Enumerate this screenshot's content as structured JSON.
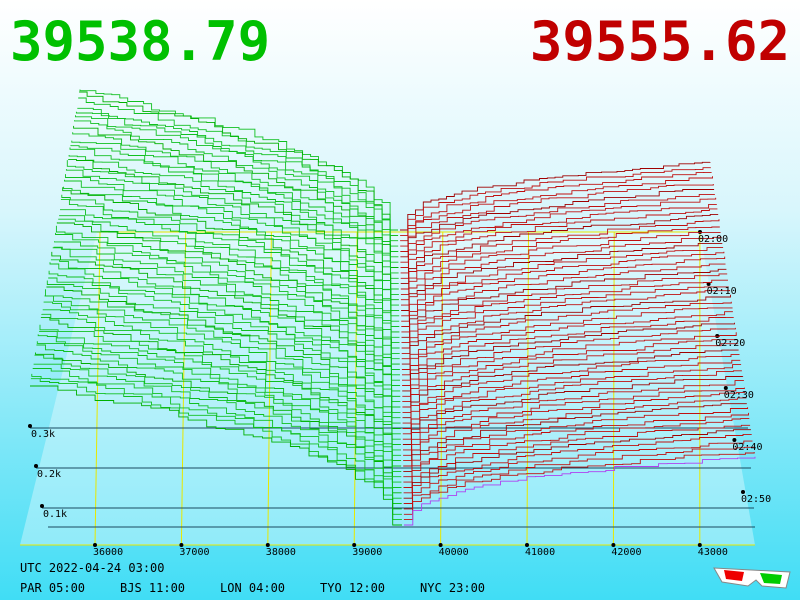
{
  "header": {
    "bid": "39538.79",
    "ask": "39555.62"
  },
  "depth_labels": [
    "0.3k",
    "0.2k",
    "0.1k"
  ],
  "price_labels": [
    "36000",
    "37000",
    "38000",
    "39000",
    "40000",
    "41000",
    "42000",
    "43000"
  ],
  "time_labels": [
    "02:00",
    "02:10",
    "02:20",
    "02:30",
    "02:40",
    "02:50"
  ],
  "footer": {
    "utc": "UTC 2022-04-24 03:00",
    "zones": [
      "PAR 05:00",
      "BJS 11:00",
      "LON 04:00",
      "TYO 12:00",
      "NYC 23:00"
    ]
  }
}
